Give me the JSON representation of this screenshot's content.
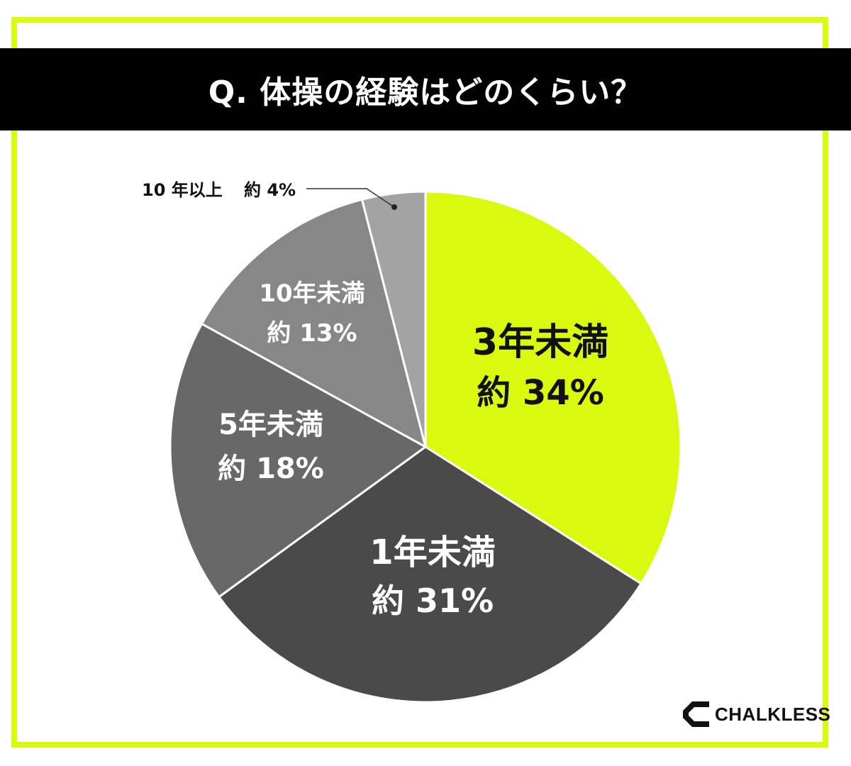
{
  "title": "Q. 体操の経験はどのくらい？",
  "colors": {
    "accent": "#d9f90e",
    "frame": "#d9f90e",
    "title_bg": "#000000"
  },
  "chart_data": {
    "type": "pie",
    "slices": [
      {
        "label": "3年未満",
        "value_label": "約 34%",
        "value": 34,
        "color": "#d9f90e",
        "text_color": "#111111"
      },
      {
        "label": "1年未満",
        "value_label": "約 31%",
        "value": 31,
        "color": "#4a4a4a",
        "text_color": "#ffffff"
      },
      {
        "label": "5年未満",
        "value_label": "約 18%",
        "value": 18,
        "color": "#686868",
        "text_color": "#ffffff"
      },
      {
        "label": "10年未満",
        "value_label": "約 13%",
        "value": 13,
        "color": "#878787",
        "text_color": "#ffffff"
      },
      {
        "label": "10 年以上",
        "value_label": "約 4%",
        "value": 4,
        "color": "#a3a3a3",
        "text_color": "#111111"
      }
    ]
  },
  "logo": {
    "text": "CHALKLESS",
    "icon": "chalkless-c-icon"
  }
}
